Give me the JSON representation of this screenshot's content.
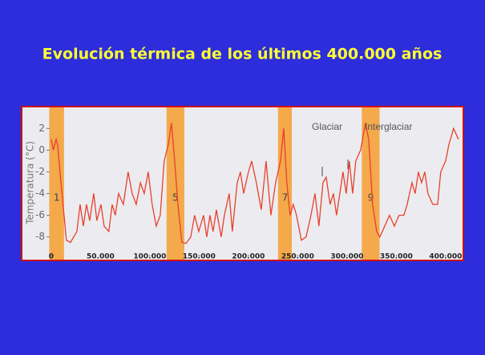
{
  "chart_data": {
    "type": "line",
    "title": "Evolución térmica de los últimos 400.000 años",
    "y_label": "Temperatura (°C)",
    "annotations": [
      "Glaciar",
      "Interglaciar"
    ],
    "color": "#e8402c",
    "xlim": [
      -30000,
      418000
    ],
    "ylim": [
      -9.5,
      3.5
    ],
    "yticks": [
      2,
      0,
      -2,
      -4,
      -6,
      -8
    ],
    "xticks": [
      0,
      {
        "value": 50000,
        "label": "50.000"
      },
      {
        "value": 100000,
        "label": "100.000"
      },
      {
        "value": 150000,
        "label": "150.000"
      },
      {
        "value": 200000,
        "label": "200.000"
      },
      {
        "value": 250000,
        "label": "250.000"
      },
      {
        "value": 300000,
        "label": "300.000"
      },
      {
        "value": 350000,
        "label": "350.000"
      },
      {
        "value": 400000,
        "label": "400.000"
      }
    ],
    "bands": [
      {
        "label": "1",
        "range": [
          -2000,
          13000
        ]
      },
      {
        "label": "5",
        "range": [
          117000,
          135000
        ]
      },
      {
        "label": "7",
        "range": [
          230000,
          244000
        ]
      },
      {
        "label": "9",
        "range": [
          315000,
          333000
        ]
      }
    ],
    "x": [
      0,
      2000,
      5000,
      6500,
      8900,
      13000,
      15400,
      19500,
      22800,
      26000,
      29300,
      32500,
      35800,
      39000,
      43100,
      46300,
      50400,
      53700,
      58500,
      61800,
      65000,
      68300,
      73200,
      78000,
      82100,
      86200,
      90400,
      94300,
      98400,
      102400,
      106500,
      110600,
      114600,
      118700,
      122000,
      125200,
      128500,
      132500,
      136600,
      141500,
      145500,
      149600,
      154500,
      157700,
      161000,
      164200,
      167500,
      172400,
      175600,
      180500,
      183700,
      188600,
      191900,
      195100,
      200000,
      203300,
      208100,
      213000,
      217900,
      222800,
      227600,
      232500,
      235800,
      239000,
      242300,
      245500,
      248800,
      253700,
      258500,
      263400,
      267500,
      271500,
      275600,
      278900,
      282900,
      286200,
      289400,
      292700,
      295900,
      299200,
      302400,
      305700,
      308900,
      313800,
      318700,
      322000,
      326000,
      330100,
      333300,
      338200,
      343100,
      348000,
      352800,
      357700,
      361000,
      365900,
      369100,
      372400,
      375600,
      378900,
      382100,
      387000,
      391900,
      395100,
      400000,
      403300,
      408100,
      413000
    ],
    "values": [
      1,
      0,
      1,
      0.5,
      -2,
      -6,
      -8.3,
      -8.5,
      -8,
      -7.5,
      -5,
      -7,
      -5,
      -6.5,
      -4,
      -6.5,
      -5,
      -7,
      -7.5,
      -5,
      -6,
      -4,
      -5,
      -2,
      -4,
      -5,
      -3,
      -4,
      -2,
      -5,
      -7,
      -6,
      -1,
      0.5,
      2.5,
      -1,
      -5,
      -8.5,
      -8.6,
      -8,
      -6,
      -7.5,
      -6,
      -8,
      -6,
      -7.5,
      -5.5,
      -8,
      -6,
      -4,
      -7.5,
      -3,
      -2,
      -4,
      -2,
      -1,
      -3,
      -5.5,
      -1,
      -6,
      -3,
      -1,
      2,
      -3,
      -6,
      -5,
      -6,
      -8.3,
      -8,
      -6,
      -4,
      -7,
      -3,
      -2.5,
      -5,
      -4,
      -6,
      -4,
      -2,
      -4,
      -1,
      -4,
      -1,
      0,
      2.5,
      1,
      -5,
      -7.5,
      -8,
      -7,
      -6,
      -7,
      -6,
      -6,
      -5,
      -3,
      -4,
      -2,
      -3,
      -2,
      -4,
      -5,
      -5,
      -2,
      -1,
      0.5,
      2,
      1
    ]
  }
}
